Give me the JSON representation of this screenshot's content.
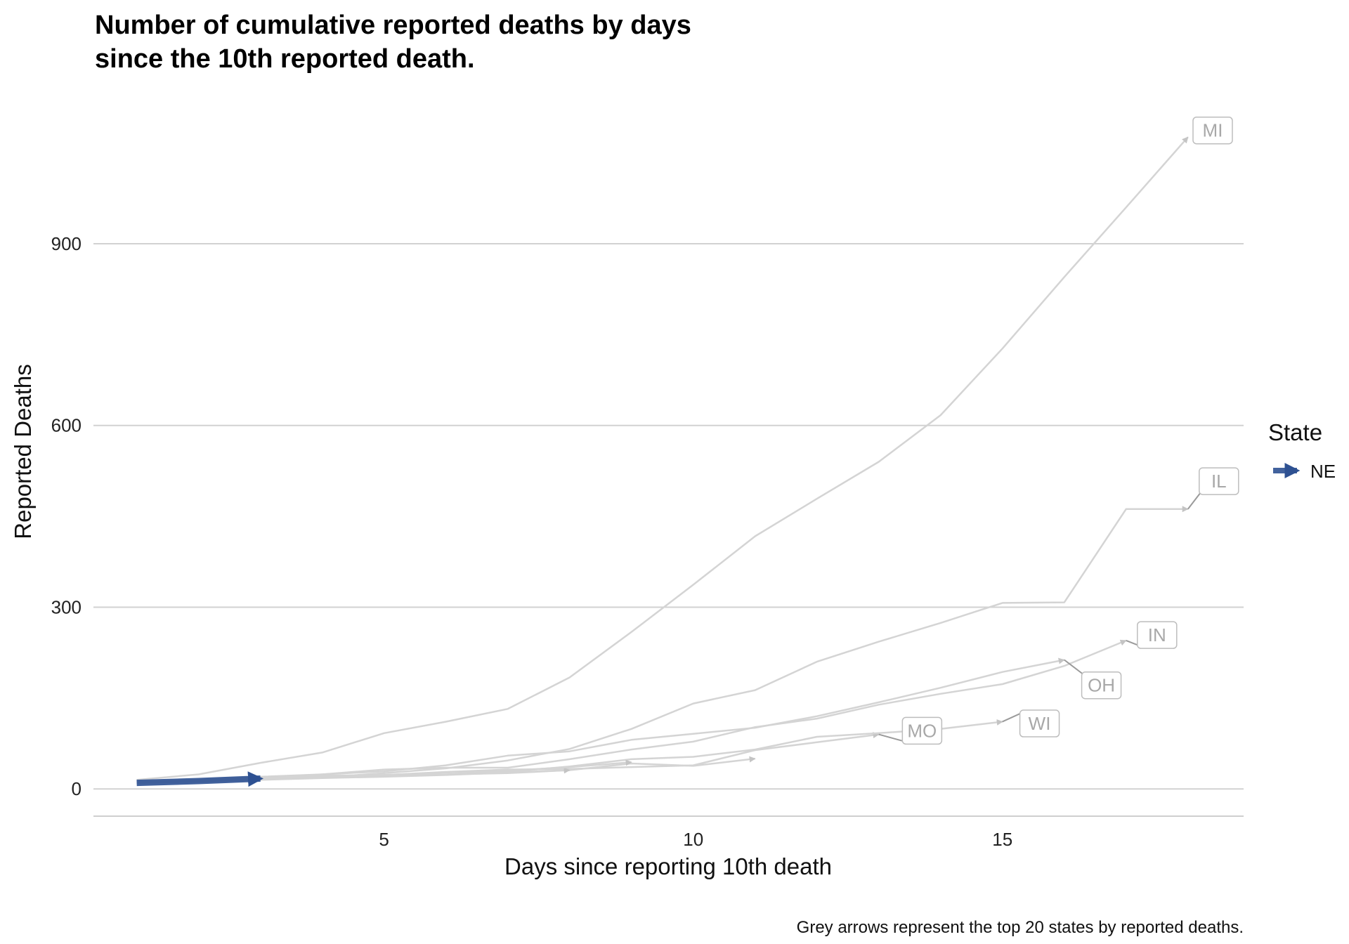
{
  "chart_data": {
    "type": "line",
    "title": "Number of cumulative reported deaths by days",
    "title_line2": "since the 10th reported death.",
    "xlabel": "Days since reporting 10th death",
    "ylabel": "Reported Deaths",
    "xlim": [
      0.3,
      18.9
    ],
    "ylim": [
      -45,
      1140
    ],
    "x_ticks": [
      5,
      10,
      15
    ],
    "x_tick_labels": [
      "5",
      "10",
      "15"
    ],
    "y_ticks": [
      0,
      300,
      600,
      900
    ],
    "y_tick_labels": [
      "0",
      "300",
      "600",
      "900"
    ],
    "grid": "horizontal-major",
    "legend_title": "State",
    "legend_placement": "right",
    "caption": "Grey arrows represent the top 20 states by reported deaths.",
    "colors": {
      "highlight": "#2e5192",
      "background": "#d4d4d4",
      "label": "#a8a8a8"
    },
    "highlight_series": {
      "name": "NE",
      "x": [
        1,
        2,
        3
      ],
      "y": [
        10,
        13,
        17
      ]
    },
    "series": [
      {
        "label": "MI",
        "x": [
          1,
          2,
          3,
          4,
          5,
          6,
          7,
          8,
          9,
          10,
          11,
          12,
          13,
          14,
          15,
          16,
          17,
          18
        ],
        "y": [
          15,
          24,
          43,
          60,
          92,
          111,
          132,
          184,
          259,
          337,
          417,
          479,
          540,
          617,
          727,
          845,
          960,
          1076
        ],
        "label_x": 18.4,
        "label_y": 1087
      },
      {
        "label": "IL",
        "x": [
          1,
          2,
          3,
          4,
          5,
          6,
          7,
          8,
          9,
          10,
          11,
          12,
          13,
          14,
          15,
          16,
          17,
          18
        ],
        "y": [
          10,
          12,
          16,
          19,
          26,
          34,
          47,
          66,
          99,
          141,
          163,
          210,
          243,
          274,
          307,
          308,
          462,
          462
        ],
        "label_x": 18.5,
        "label_y": 508
      },
      {
        "label": "IN",
        "x": [
          1,
          2,
          3,
          4,
          5,
          6,
          7,
          8,
          9,
          10,
          11,
          12,
          13,
          14,
          15,
          16,
          17
        ],
        "y": [
          12,
          14,
          17,
          24,
          32,
          35,
          35,
          49,
          65,
          78,
          102,
          116,
          139,
          157,
          173,
          203,
          245
        ],
        "label_x": 17.5,
        "label_y": 254
      },
      {
        "label": "OH",
        "x": [
          1,
          2,
          3,
          4,
          5,
          6,
          7,
          8,
          9,
          10,
          11,
          12,
          13,
          14,
          15,
          16
        ],
        "y": [
          10,
          15,
          20,
          24,
          29,
          39,
          55,
          62,
          81,
          91,
          101,
          120,
          143,
          167,
          193,
          213
        ],
        "label_x": 16.6,
        "label_y": 171
      },
      {
        "label": "MO",
        "x": [
          1,
          2,
          3,
          4,
          5,
          6,
          7,
          8,
          9,
          10,
          11,
          12,
          13
        ],
        "y": [
          12,
          14,
          18,
          22,
          23,
          28,
          32,
          33,
          36,
          39,
          64,
          77,
          90
        ],
        "label_x": 13.7,
        "label_y": 96
      },
      {
        "label": "WI",
        "x": [
          1,
          2,
          3,
          4,
          5,
          6,
          7,
          8,
          9,
          10,
          11,
          12,
          13,
          14,
          15
        ],
        "y": [
          10,
          13,
          17,
          19,
          22,
          24,
          28,
          37,
          49,
          53,
          65,
          86,
          92,
          99,
          111
        ],
        "label_x": 15.6,
        "label_y": 108
      },
      {
        "label": "",
        "x": [
          1,
          2,
          3,
          4,
          5,
          6,
          7,
          8,
          9,
          10,
          11
        ],
        "y": [
          10,
          12,
          15,
          18,
          20,
          23,
          27,
          31,
          42,
          38,
          50
        ]
      },
      {
        "label": "",
        "x": [
          1,
          2,
          3,
          4,
          5,
          6,
          7,
          8
        ],
        "y": [
          11,
          14,
          17,
          19,
          22,
          24,
          26,
          31
        ]
      },
      {
        "label": "",
        "x": [
          1,
          2,
          3,
          4,
          5,
          6,
          7,
          8,
          9
        ],
        "y": [
          11,
          13,
          17,
          21,
          23,
          27,
          30,
          36,
          44
        ]
      }
    ]
  }
}
